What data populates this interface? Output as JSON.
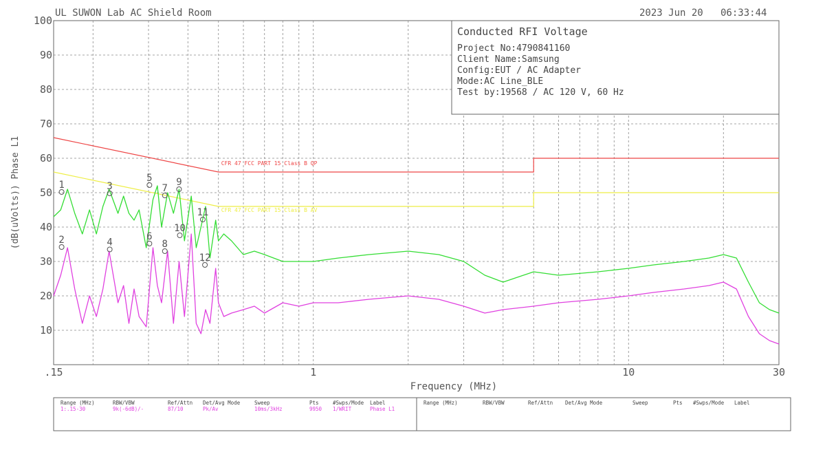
{
  "header": {
    "lab": "UL SUWON Lab AC Shield Room",
    "date": "2023 Jun 20",
    "time": "06:33:44"
  },
  "info": {
    "title": "Conducted RFI Voltage",
    "lines": [
      "Project No:4790841160",
      "Client Name:Samsung",
      "Config:EUT / AC Adapter",
      "Mode:AC Line_BLE",
      "Test by:19568 / AC 120 V, 60 Hz"
    ]
  },
  "colors": {
    "peak_trace": "#33dd33",
    "avg_trace": "#e040e0",
    "qp_limit": "#ee4444",
    "avg_limit": "#eeee44",
    "grid": "#888888",
    "text": "#555555"
  },
  "chart_data": {
    "type": "line",
    "title": "",
    "xlabel": "Frequency (MHz)",
    "ylabel": "(dB(uVolts)) Phase L1",
    "x_scale": "log",
    "xlim": [
      0.15,
      30
    ],
    "ylim": [
      0,
      100
    ],
    "x_tick_labels": [
      {
        "value": 0.15,
        "label": ".15"
      },
      {
        "value": 1,
        "label": "1"
      },
      {
        "value": 10,
        "label": "10"
      },
      {
        "value": 30,
        "label": "30"
      }
    ],
    "y_ticks": [
      10,
      20,
      30,
      40,
      50,
      60,
      70,
      80,
      90,
      100
    ],
    "grid": true,
    "limits": [
      {
        "name": "CFR 47 FCC PART 15 Class B QP",
        "color": "#ee4444",
        "points": [
          [
            0.15,
            66
          ],
          [
            0.5,
            56
          ],
          [
            5,
            56
          ],
          [
            5,
            60
          ],
          [
            30,
            60
          ]
        ]
      },
      {
        "name": "CFR 47 FCC PART 15 Class B AV",
        "color": "#eeee44",
        "points": [
          [
            0.15,
            56
          ],
          [
            0.5,
            46
          ],
          [
            5,
            46
          ],
          [
            5,
            50
          ],
          [
            30,
            50
          ]
        ]
      }
    ],
    "series": [
      {
        "color": "#33dd33",
        "x": [
          0.15,
          0.158,
          0.166,
          0.175,
          0.185,
          0.195,
          0.205,
          0.215,
          0.225,
          0.24,
          0.25,
          0.26,
          0.27,
          0.28,
          0.295,
          0.31,
          0.32,
          0.33,
          0.345,
          0.36,
          0.375,
          0.39,
          0.41,
          0.425,
          0.44,
          0.455,
          0.47,
          0.49,
          0.5,
          0.52,
          0.55,
          0.6,
          0.65,
          0.7,
          0.8,
          0.9,
          1.0,
          1.2,
          1.5,
          2.0,
          2.5,
          3.0,
          3.5,
          4.0,
          5.0,
          6.0,
          8.0,
          10,
          12,
          15,
          18,
          20,
          22,
          24,
          26,
          28,
          30
        ],
        "y": [
          43,
          45,
          51,
          44,
          38,
          45,
          38,
          46,
          51,
          44,
          49,
          44,
          42,
          45,
          34,
          48,
          52,
          40,
          50,
          44,
          51,
          36,
          49,
          34,
          40,
          46,
          31,
          42,
          36,
          38,
          36,
          32,
          33,
          32,
          30,
          30,
          30,
          31,
          32,
          33,
          32,
          30,
          26,
          24,
          27,
          26,
          27,
          28,
          29,
          30,
          31,
          32,
          31,
          24,
          18,
          16,
          15
        ]
      },
      {
        "color": "#e040e0",
        "x": [
          0.15,
          0.158,
          0.166,
          0.175,
          0.185,
          0.195,
          0.205,
          0.215,
          0.225,
          0.24,
          0.25,
          0.26,
          0.27,
          0.28,
          0.295,
          0.31,
          0.32,
          0.33,
          0.345,
          0.36,
          0.375,
          0.39,
          0.41,
          0.425,
          0.44,
          0.455,
          0.47,
          0.49,
          0.5,
          0.52,
          0.55,
          0.6,
          0.65,
          0.7,
          0.8,
          0.9,
          1.0,
          1.2,
          1.5,
          2.0,
          2.5,
          3.0,
          3.5,
          4.0,
          5.0,
          6.0,
          8.0,
          10,
          12,
          15,
          18,
          20,
          22,
          24,
          26,
          28,
          30
        ],
        "y": [
          20,
          26,
          34,
          22,
          12,
          20,
          14,
          22,
          33,
          18,
          23,
          12,
          22,
          14,
          11,
          34,
          23,
          18,
          33,
          12,
          30,
          14,
          38,
          12,
          9,
          16,
          12,
          28,
          18,
          14,
          15,
          16,
          17,
          15,
          18,
          17,
          18,
          18,
          19,
          20,
          19,
          17,
          15,
          16,
          17,
          18,
          19,
          20,
          21,
          22,
          23,
          24,
          22,
          14,
          9,
          7,
          6
        ]
      }
    ],
    "markers": [
      {
        "label": "1",
        "x": 0.159,
        "y": 50.2
      },
      {
        "label": "2",
        "x": 0.159,
        "y": 34.2
      },
      {
        "label": "3",
        "x": 0.226,
        "y": 49.8
      },
      {
        "label": "4",
        "x": 0.226,
        "y": 33.5
      },
      {
        "label": "5",
        "x": 0.302,
        "y": 52.2
      },
      {
        "label": "6",
        "x": 0.302,
        "y": 35.2
      },
      {
        "label": "7",
        "x": 0.338,
        "y": 49.2
      },
      {
        "label": "8",
        "x": 0.338,
        "y": 33.0
      },
      {
        "label": "9",
        "x": 0.375,
        "y": 51.0
      },
      {
        "label": "10",
        "x": 0.377,
        "y": 37.6
      },
      {
        "label": "11",
        "x": 0.446,
        "y": 42.2
      },
      {
        "label": "12",
        "x": 0.453,
        "y": 29.0
      }
    ]
  },
  "settings_table": {
    "headers": [
      "Range (MHz)",
      "RBW/VBW",
      "Ref/Attn",
      "Det/Avg Mode",
      "Sweep",
      "Pts",
      "#Swps/Mode",
      "Label"
    ],
    "row": [
      "1:.15-30",
      "9k(-6dB)/-",
      "87/10",
      "Pk/Av",
      "10ms/3kHz",
      "9950",
      "1/WRIT",
      "Phase L1"
    ]
  }
}
